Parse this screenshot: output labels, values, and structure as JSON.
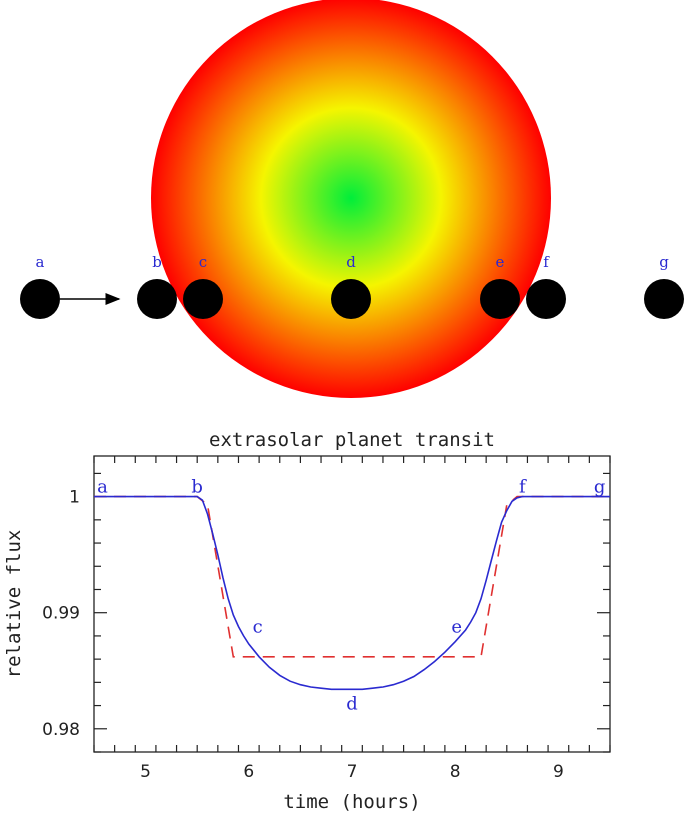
{
  "diagram": {
    "star_colors": {
      "center": "#00ee3a",
      "mid": "#f5f500",
      "edge": "#ff0000"
    },
    "planet_color": "#000000",
    "label_color": "#2a2ad0",
    "planets": [
      {
        "label": "a"
      },
      {
        "label": "b"
      },
      {
        "label": "c"
      },
      {
        "label": "d"
      },
      {
        "label": "e"
      },
      {
        "label": "f"
      },
      {
        "label": "g"
      }
    ]
  },
  "chart_data": {
    "type": "line",
    "title": "extrasolar planet transit",
    "xlabel": "time (hours)",
    "ylabel": "relative flux",
    "xlim": [
      4.5,
      9.5
    ],
    "ylim": [
      0.978,
      1.0035
    ],
    "xticks": [
      "5",
      "6",
      "7",
      "8",
      "9"
    ],
    "yticks": [
      "0.98",
      "0.99",
      "1"
    ],
    "series": [
      {
        "style": "solid",
        "color": "#2a2ad0",
        "x": [
          4.5,
          5.5,
          5.55,
          5.6,
          5.65,
          5.7,
          5.75,
          5.8,
          5.85,
          5.9,
          5.95,
          6.0,
          6.1,
          6.2,
          6.3,
          6.4,
          6.5,
          6.6,
          6.7,
          6.8,
          6.9,
          7.0,
          7.1,
          7.2,
          7.3,
          7.4,
          7.5,
          7.6,
          7.7,
          7.8,
          7.9,
          8.0,
          8.1,
          8.15,
          8.2,
          8.25,
          8.3,
          8.35,
          8.4,
          8.45,
          8.5,
          8.55,
          8.6,
          8.65,
          9.5
        ],
        "y": [
          1.0,
          1.0,
          0.9997,
          0.9985,
          0.9968,
          0.995,
          0.993,
          0.9912,
          0.9898,
          0.9888,
          0.988,
          0.9873,
          0.9862,
          0.9853,
          0.9846,
          0.9841,
          0.9838,
          0.9836,
          0.9835,
          0.9834,
          0.9834,
          0.9834,
          0.9834,
          0.9835,
          0.9836,
          0.9838,
          0.9841,
          0.9845,
          0.9851,
          0.9858,
          0.9866,
          0.9875,
          0.9885,
          0.9892,
          0.99,
          0.9912,
          0.9928,
          0.9945,
          0.9962,
          0.9978,
          0.9988,
          0.9996,
          0.9999,
          1.0,
          1.0
        ]
      },
      {
        "style": "dashed",
        "color": "#e03030",
        "x": [
          4.5,
          5.5,
          5.6,
          5.85,
          8.25,
          8.5,
          8.6,
          9.5
        ],
        "y": [
          1.0,
          1.0,
          0.9993,
          0.9862,
          0.9862,
          0.9993,
          1.0,
          1.0
        ]
      }
    ],
    "annotations": [
      {
        "text": "a",
        "x": 4.55,
        "y": 1.0
      },
      {
        "text": "b",
        "x": 5.5,
        "y": 1.0
      },
      {
        "text": "c",
        "x": 5.95,
        "y": 0.9888
      },
      {
        "text": "d",
        "x": 7.0,
        "y": 0.9834
      },
      {
        "text": "e",
        "x": 8.15,
        "y": 0.9888
      },
      {
        "text": "f",
        "x": 8.65,
        "y": 1.0
      },
      {
        "text": "g",
        "x": 9.4,
        "y": 1.0
      }
    ]
  }
}
